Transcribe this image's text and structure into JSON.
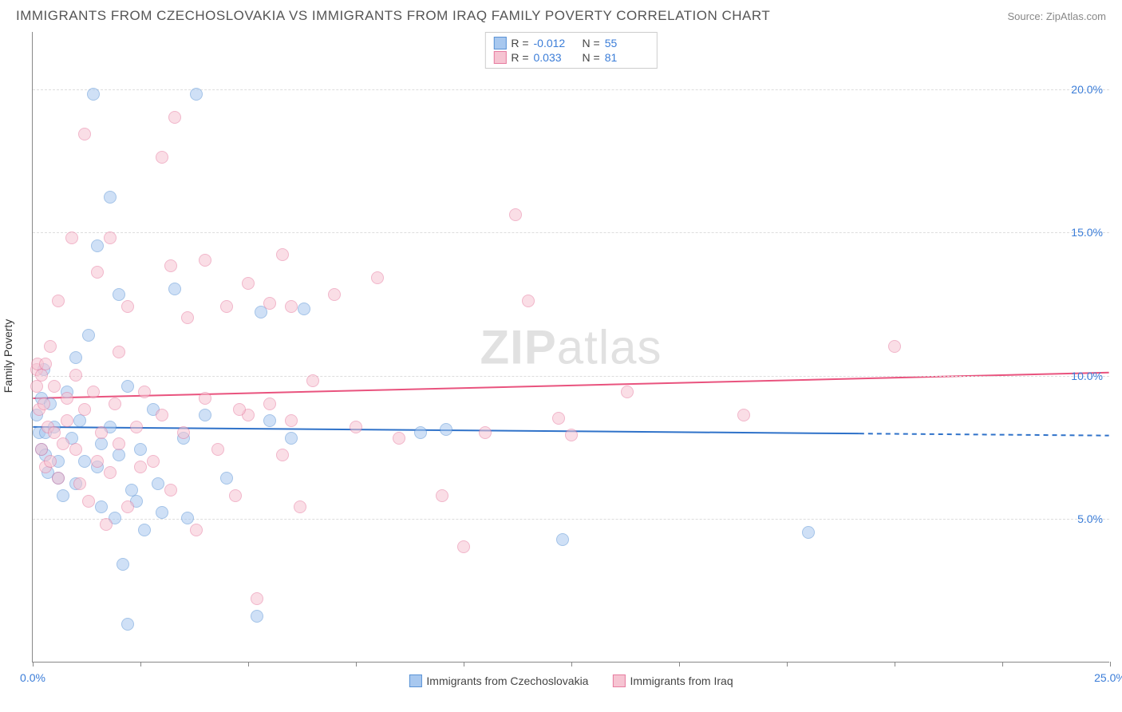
{
  "header": {
    "title": "IMMIGRANTS FROM CZECHOSLOVAKIA VS IMMIGRANTS FROM IRAQ FAMILY POVERTY CORRELATION CHART",
    "source": "Source: ZipAtlas.com"
  },
  "chart": {
    "type": "scatter",
    "ylabel": "Family Poverty",
    "xlim": [
      0,
      25
    ],
    "ylim": [
      0,
      22
    ],
    "x_ticks": [
      0,
      2.5,
      5,
      7.5,
      10,
      12.5,
      15,
      17.5,
      20,
      22.5,
      25
    ],
    "x_tick_labels": {
      "0": "0.0%",
      "25": "25.0%"
    },
    "y_grid": [
      5,
      10,
      15,
      20
    ],
    "y_tick_labels": {
      "5": "5.0%",
      "10": "10.0%",
      "15": "15.0%",
      "20": "20.0%"
    },
    "background_color": "#ffffff",
    "grid_color": "#dddddd",
    "axis_color": "#888888",
    "tick_label_color": "#3b7dd8",
    "marker_radius": 8,
    "marker_opacity": 0.55,
    "series": [
      {
        "name": "Immigrants from Czechoslovakia",
        "color_fill": "#a8c8ef",
        "color_stroke": "#5a93d6",
        "R": "-0.012",
        "N": "55",
        "trend": {
          "x1": 0,
          "y1": 8.2,
          "x2": 25,
          "y2": 7.9,
          "solid_until_x": 19.2,
          "color": "#2f72c9",
          "width": 2
        },
        "points": [
          [
            0.1,
            8.6
          ],
          [
            0.15,
            8.0
          ],
          [
            0.2,
            9.2
          ],
          [
            0.2,
            7.4
          ],
          [
            0.25,
            10.2
          ],
          [
            0.3,
            8.0
          ],
          [
            0.3,
            7.2
          ],
          [
            0.35,
            6.6
          ],
          [
            0.4,
            9.0
          ],
          [
            0.5,
            8.2
          ],
          [
            0.6,
            7.0
          ],
          [
            0.6,
            6.4
          ],
          [
            0.7,
            5.8
          ],
          [
            0.8,
            9.4
          ],
          [
            0.9,
            7.8
          ],
          [
            1.0,
            6.2
          ],
          [
            1.0,
            10.6
          ],
          [
            1.1,
            8.4
          ],
          [
            1.2,
            7.0
          ],
          [
            1.3,
            11.4
          ],
          [
            1.4,
            19.8
          ],
          [
            1.5,
            14.5
          ],
          [
            1.5,
            6.8
          ],
          [
            1.6,
            5.4
          ],
          [
            1.6,
            7.6
          ],
          [
            1.8,
            16.2
          ],
          [
            1.8,
            8.2
          ],
          [
            1.9,
            5.0
          ],
          [
            2.0,
            12.8
          ],
          [
            2.0,
            7.2
          ],
          [
            2.1,
            3.4
          ],
          [
            2.2,
            9.6
          ],
          [
            2.2,
            1.3
          ],
          [
            2.3,
            6.0
          ],
          [
            2.4,
            5.6
          ],
          [
            2.5,
            7.4
          ],
          [
            2.6,
            4.6
          ],
          [
            2.8,
            8.8
          ],
          [
            2.9,
            6.2
          ],
          [
            3.0,
            5.2
          ],
          [
            3.3,
            13.0
          ],
          [
            3.5,
            7.8
          ],
          [
            3.6,
            5.0
          ],
          [
            3.8,
            19.8
          ],
          [
            4.0,
            8.6
          ],
          [
            4.5,
            6.4
          ],
          [
            5.2,
            1.6
          ],
          [
            5.3,
            12.2
          ],
          [
            5.5,
            8.4
          ],
          [
            6.0,
            7.8
          ],
          [
            6.3,
            12.3
          ],
          [
            9.0,
            8.0
          ],
          [
            9.6,
            8.1
          ],
          [
            12.3,
            4.25
          ],
          [
            18.0,
            4.5
          ]
        ]
      },
      {
        "name": "Immigrants from Iraq",
        "color_fill": "#f6c4d2",
        "color_stroke": "#e77ca0",
        "R": "0.033",
        "N": "81",
        "trend": {
          "x1": 0,
          "y1": 9.2,
          "x2": 25,
          "y2": 10.1,
          "solid_until_x": 25,
          "color": "#e9537e",
          "width": 2
        },
        "points": [
          [
            0.1,
            10.2
          ],
          [
            0.1,
            9.6
          ],
          [
            0.12,
            10.4
          ],
          [
            0.15,
            8.8
          ],
          [
            0.2,
            10.0
          ],
          [
            0.2,
            7.4
          ],
          [
            0.25,
            9.0
          ],
          [
            0.3,
            10.4
          ],
          [
            0.3,
            6.8
          ],
          [
            0.35,
            8.2
          ],
          [
            0.4,
            11.0
          ],
          [
            0.4,
            7.0
          ],
          [
            0.5,
            9.6
          ],
          [
            0.5,
            8.0
          ],
          [
            0.6,
            6.4
          ],
          [
            0.6,
            12.6
          ],
          [
            0.7,
            7.6
          ],
          [
            0.8,
            9.2
          ],
          [
            0.8,
            8.4
          ],
          [
            0.9,
            14.8
          ],
          [
            1.0,
            7.4
          ],
          [
            1.0,
            10.0
          ],
          [
            1.1,
            6.2
          ],
          [
            1.2,
            8.8
          ],
          [
            1.2,
            18.4
          ],
          [
            1.3,
            5.6
          ],
          [
            1.4,
            9.4
          ],
          [
            1.5,
            7.0
          ],
          [
            1.5,
            13.6
          ],
          [
            1.6,
            8.0
          ],
          [
            1.7,
            4.8
          ],
          [
            1.8,
            14.8
          ],
          [
            1.8,
            6.6
          ],
          [
            1.9,
            9.0
          ],
          [
            2.0,
            7.6
          ],
          [
            2.0,
            10.8
          ],
          [
            2.2,
            12.4
          ],
          [
            2.2,
            5.4
          ],
          [
            2.4,
            8.2
          ],
          [
            2.5,
            6.8
          ],
          [
            2.6,
            9.4
          ],
          [
            2.8,
            7.0
          ],
          [
            3.0,
            17.6
          ],
          [
            3.0,
            8.6
          ],
          [
            3.2,
            13.8
          ],
          [
            3.2,
            6.0
          ],
          [
            3.3,
            19.0
          ],
          [
            3.5,
            8.0
          ],
          [
            3.6,
            12.0
          ],
          [
            3.8,
            4.6
          ],
          [
            4.0,
            9.2
          ],
          [
            4.0,
            14.0
          ],
          [
            4.3,
            7.4
          ],
          [
            4.5,
            12.4
          ],
          [
            4.7,
            5.8
          ],
          [
            5.0,
            8.6
          ],
          [
            5.0,
            13.2
          ],
          [
            5.2,
            2.2
          ],
          [
            5.5,
            9.0
          ],
          [
            5.5,
            12.5
          ],
          [
            5.8,
            7.2
          ],
          [
            5.8,
            14.2
          ],
          [
            6.0,
            8.4
          ],
          [
            6.2,
            5.4
          ],
          [
            6.5,
            9.8
          ],
          [
            7.0,
            12.8
          ],
          [
            7.5,
            8.2
          ],
          [
            8.0,
            13.4
          ],
          [
            8.5,
            7.8
          ],
          [
            9.5,
            5.8
          ],
          [
            10.0,
            4.0
          ],
          [
            10.5,
            8.0
          ],
          [
            11.2,
            15.6
          ],
          [
            11.5,
            12.6
          ],
          [
            12.2,
            8.5
          ],
          [
            12.5,
            7.9
          ],
          [
            13.8,
            9.4
          ],
          [
            16.5,
            8.6
          ],
          [
            20.0,
            11.0
          ],
          [
            6.0,
            12.4
          ],
          [
            4.8,
            8.8
          ]
        ]
      }
    ],
    "watermark": {
      "text1": "ZIP",
      "text2": "atlas"
    }
  },
  "legend_bottom": [
    {
      "label": "Immigrants from Czechoslovakia",
      "series_idx": 0
    },
    {
      "label": "Immigrants from Iraq",
      "series_idx": 1
    }
  ]
}
